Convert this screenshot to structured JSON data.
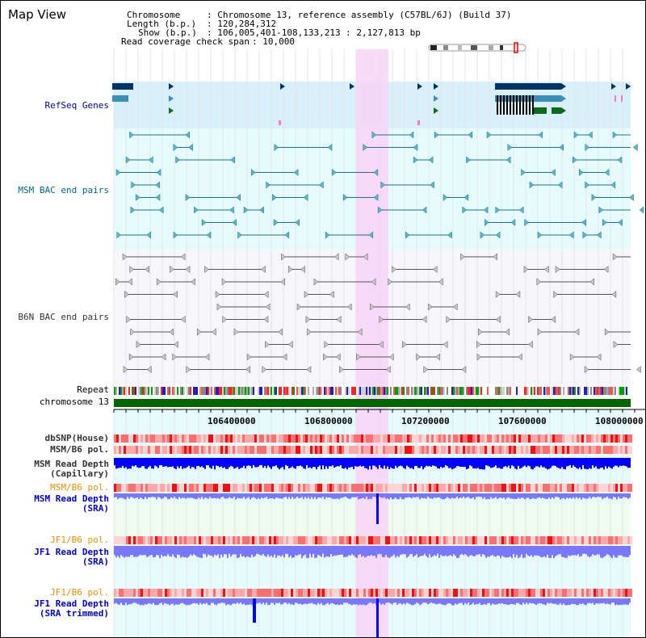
{
  "title": "Map View",
  "info": {
    "chromosome_label": "Chromosome",
    "chromosome_value": ": Chromosome 13, reference assembly (C57BL/6J) (Build 37)",
    "length_label": "Length (b.p.)",
    "length_value": ": 120,284,312",
    "show_label": "Show (b.p.)",
    "show_value": ": 106,005,401-108,133,213 : 2,127,813 bp",
    "coverage_label": "Read coverage check span",
    "coverage_value": ": 10,000"
  },
  "tracks": {
    "refseq": "RefSeq Genes",
    "msm_bac": "MSM BAC end pairs",
    "b6n_bac": "B6N BAC end pairs",
    "repeat": "Repeat",
    "chromosome": "chromosome 13",
    "dbsnp": "dbSNP(House)",
    "msm_b6_pol": "MSM/B6 pol.",
    "msm_depth_cap_1": "MSM Read Depth",
    "msm_depth_cap_2": "(Capillary)",
    "msm_b6_pol_2": "MSM/B6 pol.",
    "msm_depth_sra_1": "MSM Read Depth",
    "msm_depth_sra_2": "(SRA)",
    "jf1_b6_pol": "JF1/B6 pol.",
    "jf1_depth_sra_1": "JF1 Read Depth",
    "jf1_depth_sra_2": "(SRA)",
    "jf1_b6_pol_2": "JF1/B6 pol.",
    "jf1_depth_trim_1": "JF1 Read Depth",
    "jf1_depth_trim_2": "(SRA trimmed)"
  },
  "axis": {
    "ticks": [
      "106400000",
      "106800000",
      "107200000",
      "107600000",
      "108000000"
    ]
  },
  "colors": {
    "refseq_band": "#d8f0fa",
    "bac_band": "#e6fcfc",
    "b6n_band": "#f6f6fb",
    "highlight": "#f8d4f6",
    "chromosome_bar": "#006400",
    "depth_dark": "#0000ff",
    "depth_light": "#7878ff",
    "pol_red": "#ee1111"
  }
}
